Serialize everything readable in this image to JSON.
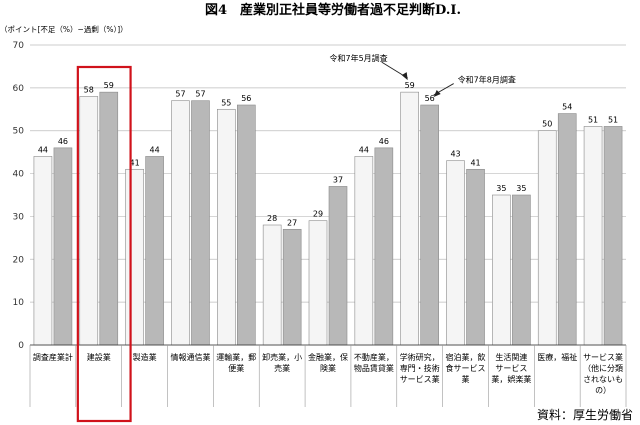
{
  "chart_data": {
    "type": "bar",
    "title": "図4　産業別正社員等労働者過不足判断D.I.",
    "ylabel": "（ポイント[不足（%）−過剰（%）]）",
    "ylim": [
      0,
      70
    ],
    "yticks": [
      0,
      10,
      20,
      30,
      40,
      50,
      60,
      70
    ],
    "categories": [
      [
        "調査産業計"
      ],
      [
        "建設業"
      ],
      [
        "製造業"
      ],
      [
        "情報通信業"
      ],
      [
        "運輸業，郵",
        "便業"
      ],
      [
        "卸売業，小",
        "売業"
      ],
      [
        "金融業，保",
        "険業"
      ],
      [
        "不動産業，",
        "物品賃貸業"
      ],
      [
        "学術研究，",
        "専門・技術",
        "サービス業"
      ],
      [
        "宿泊業，飲",
        "食サービス",
        "業"
      ],
      [
        "生活関連",
        "サービス",
        "業，娯楽業"
      ],
      [
        "医療，福祉"
      ],
      [
        "サービス業",
        "（他に分類",
        "されないも",
        "の）"
      ]
    ],
    "series": [
      {
        "name": "令和7年5月調査",
        "color": "#f5f5f5",
        "values": [
          44,
          58,
          41,
          57,
          55,
          28,
          29,
          44,
          59,
          43,
          35,
          50,
          51
        ]
      },
      {
        "name": "令和7年8月調査",
        "color": "#b8b8b8",
        "values": [
          46,
          59,
          44,
          57,
          56,
          27,
          37,
          46,
          56,
          41,
          35,
          54,
          51
        ]
      }
    ],
    "annotations": [
      "令和7年5月調査",
      "令和7年8月調査"
    ],
    "highlight_category": 1,
    "highlight_color": "#d0121b",
    "grid": true,
    "source": "資料：厚生労働省"
  }
}
